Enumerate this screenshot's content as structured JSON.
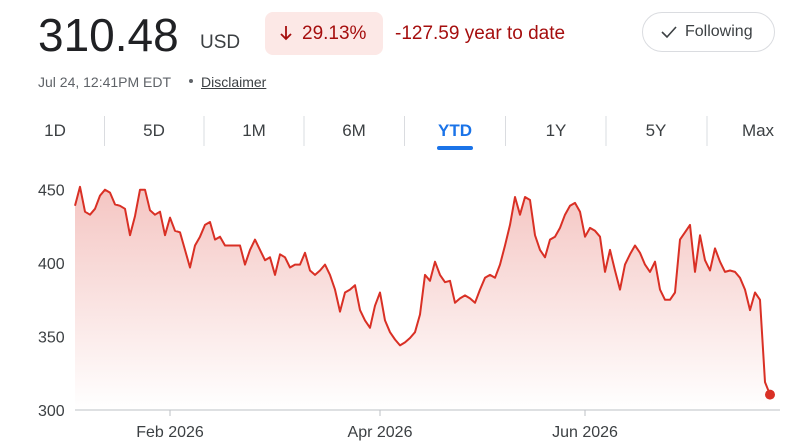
{
  "header": {
    "price": "310.48",
    "currency": "USD",
    "change_percent": "29.13%",
    "change_amount": "-127.59 year to date",
    "follow_button": "Following",
    "timestamp": "Jul 24, 12:41PM EDT",
    "disclaimer": "Disclaimer"
  },
  "tabs": {
    "items": [
      "1D",
      "5D",
      "1M",
      "6M",
      "YTD",
      "1Y",
      "5Y",
      "Max"
    ],
    "selected": 4
  },
  "chart_data": {
    "type": "line",
    "color": "#d93025",
    "values": [
      439,
      452,
      435,
      433,
      437,
      446,
      450,
      448,
      440,
      439,
      437,
      419,
      432,
      450,
      450,
      436,
      433,
      435,
      419,
      431,
      422,
      421,
      409,
      397,
      412,
      418,
      426,
      428,
      416,
      418,
      412,
      412,
      412,
      412,
      399,
      409,
      416,
      409,
      402,
      404,
      392,
      406,
      404,
      397,
      399,
      399,
      407,
      395,
      392,
      395,
      399,
      392,
      382,
      367,
      380,
      382,
      385,
      368,
      361,
      356,
      371,
      380,
      361,
      353,
      348,
      344,
      346,
      349,
      353,
      365,
      392,
      388,
      401,
      392,
      387,
      388,
      373,
      376,
      378,
      376,
      373,
      382,
      390,
      392,
      390,
      399,
      412,
      426,
      445,
      433,
      445,
      443,
      419,
      409,
      404,
      416,
      418,
      424,
      433,
      439,
      441,
      435,
      418,
      424,
      422,
      418,
      394,
      409,
      395,
      382,
      399,
      406,
      412,
      407,
      399,
      394,
      401,
      382,
      375,
      375,
      380,
      416,
      421,
      426,
      394,
      419,
      402,
      395,
      410,
      401,
      394,
      395,
      394,
      390,
      382,
      368,
      380,
      375,
      319,
      310.48
    ],
    "xlim": [
      0,
      139
    ],
    "xticks": [
      {
        "value": 19,
        "label": "Feb 2026"
      },
      {
        "value": 61,
        "label": "Apr 2026"
      },
      {
        "value": 102,
        "label": "Jun 2026"
      }
    ],
    "ylim": [
      300,
      460
    ],
    "yticks": [
      300,
      350,
      400,
      450
    ]
  }
}
